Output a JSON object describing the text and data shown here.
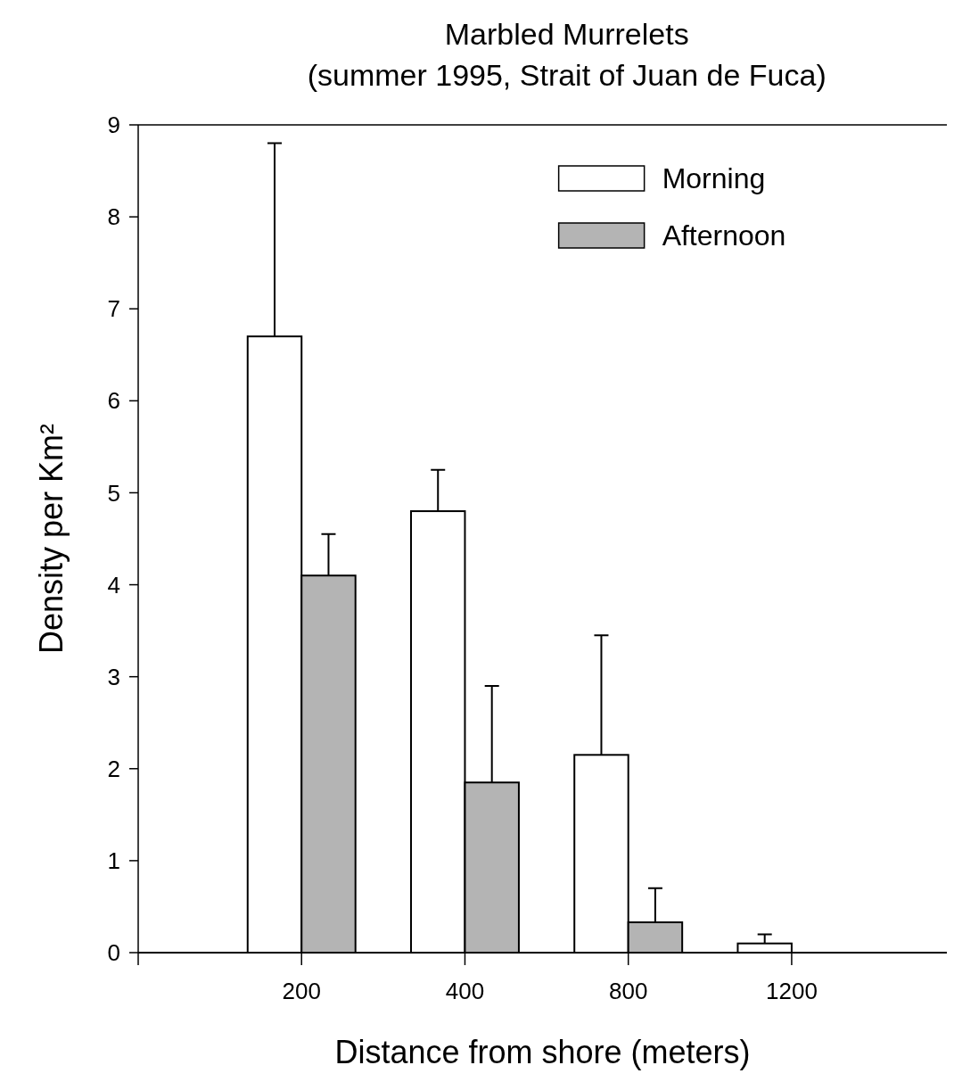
{
  "chart_data": {
    "type": "bar",
    "title": "Marbled Murrelets",
    "subtitle": "(summer 1995, Strait of Juan de Fuca)",
    "xlabel": "Distance from shore (meters)",
    "ylabel": "Density per Km²",
    "categories": [
      "200",
      "400",
      "800",
      "1200"
    ],
    "series": [
      {
        "name": "Morning",
        "color": "#ffffff",
        "values": [
          6.7,
          4.8,
          2.15,
          0.1
        ],
        "errors": [
          [
            6.7,
            8.8
          ],
          [
            4.8,
            5.25
          ],
          [
            2.15,
            3.45
          ],
          [
            0.1,
            0.2
          ]
        ]
      },
      {
        "name": "Afternoon",
        "color": "#b4b4b4",
        "values": [
          4.1,
          1.85,
          0.33,
          0
        ],
        "errors": [
          [
            4.1,
            4.55
          ],
          [
            1.85,
            2.9
          ],
          [
            0.33,
            0.7
          ],
          null
        ]
      }
    ],
    "ylim": [
      0,
      9
    ],
    "yticks": [
      0,
      1,
      2,
      3,
      4,
      5,
      6,
      7,
      8,
      9
    ],
    "grid": false,
    "legend": "top right"
  }
}
